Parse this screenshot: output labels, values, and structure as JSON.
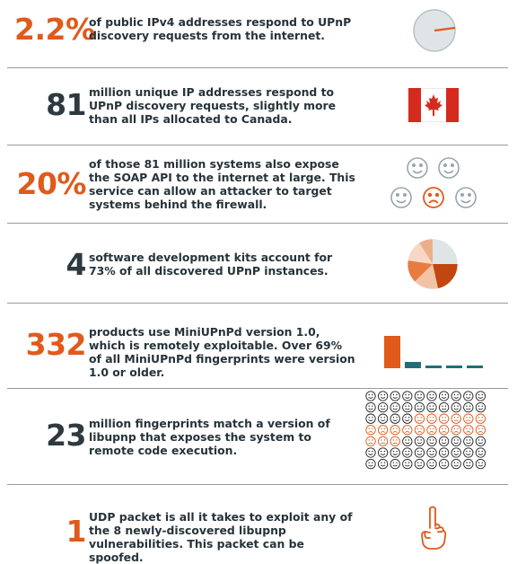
{
  "colors": {
    "orange": "#e05a1c",
    "dark": "#2e3a40",
    "teal": "#1e6f78",
    "gray": "#9aa5a8",
    "divider": "#9a9a9a"
  },
  "rows": [
    {
      "stat": "2.2%",
      "text": "of public IPv4 addresses respond to UPnP discovery requests from the internet.",
      "graphic": "pie-icon",
      "fraction": 0.022
    },
    {
      "stat": "81",
      "text": "million unique IP addresses respond to UPnP discovery requests, slightly more than all IPs allocated to Canada.",
      "graphic": "canada-flag-icon"
    },
    {
      "stat": "20%",
      "text": "of those 81 million systems also expose the SOAP API to the internet at large. This service can allow an attacker to target systems behind the firewall.",
      "graphic": "smiley-faces-icon",
      "fraction": 0.2
    },
    {
      "stat": "4",
      "text": "software development kits account for 73% of all discovered UPnP instances.",
      "graphic": "pie-chart-icon"
    },
    {
      "stat": "332",
      "text": "products use MiniUPnPd version 1.0, which is remotely exploitable. Over 69% of all MiniUPnPd fingerprints were version 1.0 or older.",
      "graphic": "bar-chart-icon"
    },
    {
      "stat": "23",
      "text": "million fingerprints match a version of libupnp that exposes the system to remote code execution.",
      "graphic": "smiley-grid-icon"
    },
    {
      "stat": "1",
      "text": "UDP packet is all it takes to exploit any of the 8 newly-discovered libupnp vulnerabilities. This packet can be spoofed.",
      "graphic": "finger-icon"
    }
  ]
}
